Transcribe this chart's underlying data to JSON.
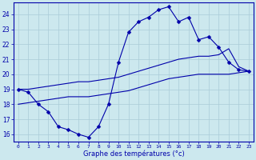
{
  "xlabel": "Graphe des températures (°c)",
  "background_color": "#cce8ee",
  "grid_color": "#aaccd8",
  "line_color": "#0000aa",
  "hours": [
    0,
    1,
    2,
    3,
    4,
    5,
    6,
    7,
    8,
    9,
    10,
    11,
    12,
    13,
    14,
    15,
    16,
    17,
    18,
    19,
    20,
    21,
    22,
    23
  ],
  "temp_upper": [
    19.0,
    18.8,
    18.0,
    17.5,
    16.5,
    16.3,
    16.0,
    15.8,
    16.5,
    18.0,
    20.8,
    22.8,
    23.5,
    23.8,
    24.3,
    24.5,
    23.5,
    23.8,
    22.3,
    22.5,
    21.8,
    20.8,
    20.3,
    20.2
  ],
  "temp_line1": [
    19.0,
    19.0,
    19.1,
    19.2,
    19.3,
    19.4,
    19.5,
    19.5,
    19.6,
    19.7,
    19.8,
    20.0,
    20.2,
    20.4,
    20.6,
    20.8,
    21.0,
    21.1,
    21.2,
    21.2,
    21.3,
    21.7,
    20.5,
    20.2
  ],
  "temp_line2": [
    18.0,
    18.1,
    18.2,
    18.3,
    18.4,
    18.5,
    18.5,
    18.5,
    18.6,
    18.7,
    18.8,
    18.9,
    19.1,
    19.3,
    19.5,
    19.7,
    19.8,
    19.9,
    20.0,
    20.0,
    20.0,
    20.0,
    20.1,
    20.2
  ],
  "ylim": [
    15.5,
    24.8
  ],
  "yticks": [
    16,
    17,
    18,
    19,
    20,
    21,
    22,
    23,
    24
  ],
  "figsize": [
    3.2,
    2.0
  ],
  "dpi": 100
}
